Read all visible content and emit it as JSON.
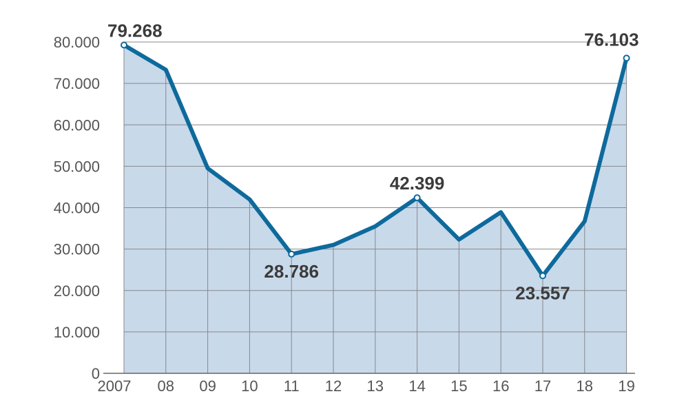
{
  "chart_data": {
    "type": "area",
    "categories": [
      "2007",
      "08",
      "09",
      "10",
      "11",
      "12",
      "13",
      "14",
      "15",
      "16",
      "17",
      "18",
      "19"
    ],
    "values": [
      79268,
      73300,
      49500,
      42000,
      28786,
      31000,
      35500,
      42399,
      32300,
      38900,
      23557,
      36700,
      76103
    ],
    "ylim": [
      0,
      80000
    ],
    "yticks": [
      0,
      10000,
      20000,
      30000,
      40000,
      50000,
      60000,
      70000,
      80000
    ],
    "ytick_labels": [
      "0",
      "10.000",
      "20.000",
      "30.000",
      "40.000",
      "50.000",
      "60.000",
      "70.000",
      "80.000"
    ],
    "data_labels": [
      {
        "index": 0,
        "text": "79.268",
        "placement": "above"
      },
      {
        "index": 4,
        "text": "28.786",
        "placement": "below"
      },
      {
        "index": 7,
        "text": "42.399",
        "placement": "above"
      },
      {
        "index": 10,
        "text": "23.557",
        "placement": "below"
      },
      {
        "index": 12,
        "text": "76.103",
        "placement": "above"
      }
    ],
    "grid": true,
    "legend": "none",
    "colors": {
      "line": "#0e6a9c",
      "fill": "#c8d9ea",
      "grid": "#888888",
      "marker_fill": "#ffffff"
    }
  }
}
